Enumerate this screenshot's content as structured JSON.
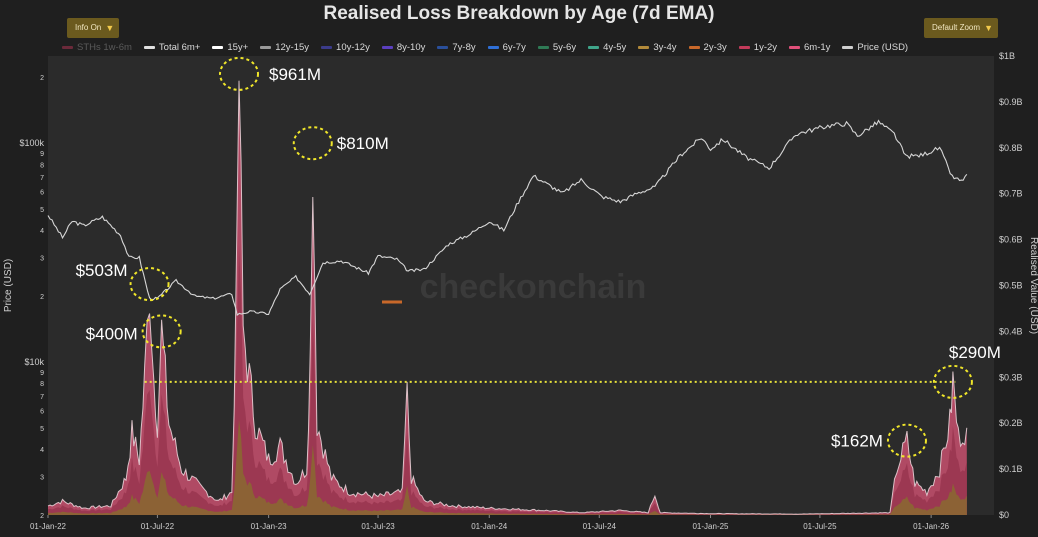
{
  "header": {
    "title": "Realised Loss Breakdown by Age (7d EMA)",
    "info_button": "Info On",
    "zoom_button": "Default Zoom",
    "caret": "▼"
  },
  "legend": [
    {
      "label": "STHs 1w-6m",
      "color": "#6b2a3a",
      "dim": true
    },
    {
      "label": "Total 6m+",
      "color": "#e0e0e0"
    },
    {
      "label": "15y+",
      "color": "#ffffff"
    },
    {
      "label": "12y-15y",
      "color": "#9a9a9a"
    },
    {
      "label": "10y-12y",
      "color": "#3b3b8a"
    },
    {
      "label": "8y-10y",
      "color": "#5b3fbf"
    },
    {
      "label": "7y-8y",
      "color": "#2a4f9a"
    },
    {
      "label": "6y-7y",
      "color": "#2f6fd6"
    },
    {
      "label": "5y-6y",
      "color": "#2f7a55"
    },
    {
      "label": "4y-5y",
      "color": "#3fa58a"
    },
    {
      "label": "3y-4y",
      "color": "#b28a3a"
    },
    {
      "label": "2y-3y",
      "color": "#c8682a"
    },
    {
      "label": "1y-2y",
      "color": "#c23a5a"
    },
    {
      "label": "6m-1y",
      "color": "#e0507a"
    },
    {
      "label": "Price (USD)",
      "color": "#cfcfcf"
    }
  ],
  "watermark": "checkonchain",
  "chart_data": {
    "type": "area",
    "x_ticks": [
      "01-Jan-22",
      "01-Jul-22",
      "01-Jan-23",
      "01-Jul-23",
      "01-Jan-24",
      "01-Jul-24",
      "01-Jan-25",
      "01-Jul-25",
      "01-Jan-26"
    ],
    "left_axis": {
      "label": "Price (USD)",
      "scale": "log",
      "range": [
        2000,
        250000
      ],
      "ticks": [
        {
          "v": 2000,
          "t": "2"
        },
        {
          "v": 3000,
          "t": "3"
        },
        {
          "v": 4000,
          "t": "4"
        },
        {
          "v": 5000,
          "t": "5"
        },
        {
          "v": 6000,
          "t": "6"
        },
        {
          "v": 7000,
          "t": "7"
        },
        {
          "v": 8000,
          "t": "8"
        },
        {
          "v": 9000,
          "t": "9"
        },
        {
          "v": 10000,
          "t": "$10k"
        },
        {
          "v": 20000,
          "t": "2"
        },
        {
          "v": 30000,
          "t": "3"
        },
        {
          "v": 40000,
          "t": "4"
        },
        {
          "v": 50000,
          "t": "5"
        },
        {
          "v": 60000,
          "t": "6"
        },
        {
          "v": 70000,
          "t": "7"
        },
        {
          "v": 80000,
          "t": "8"
        },
        {
          "v": 90000,
          "t": "9"
        },
        {
          "v": 100000,
          "t": "$100k"
        },
        {
          "v": 200000,
          "t": "2"
        }
      ]
    },
    "right_axis": {
      "label": "Realised Value (USD)",
      "range": [
        0,
        1.0
      ],
      "ticks": [
        {
          "v": 0,
          "t": "$0"
        },
        {
          "v": 0.1,
          "t": "$0.1B"
        },
        {
          "v": 0.2,
          "t": "$0.2B"
        },
        {
          "v": 0.3,
          "t": "$0.3B"
        },
        {
          "v": 0.4,
          "t": "$0.4B"
        },
        {
          "v": 0.5,
          "t": "$0.5B"
        },
        {
          "v": 0.6,
          "t": "$0.6B"
        },
        {
          "v": 0.7,
          "t": "$0.7B"
        },
        {
          "v": 0.8,
          "t": "$0.8B"
        },
        {
          "v": 0.9,
          "t": "$0.9B"
        },
        {
          "v": 1.0,
          "t": "$1B"
        }
      ]
    },
    "price_series": [
      [
        "2022-01-01",
        47000
      ],
      [
        "2022-01-25",
        37000
      ],
      [
        "2022-02-10",
        44000
      ],
      [
        "2022-03-01",
        42000
      ],
      [
        "2022-04-01",
        46000
      ],
      [
        "2022-05-01",
        38000
      ],
      [
        "2022-05-15",
        30000
      ],
      [
        "2022-06-01",
        30000
      ],
      [
        "2022-06-18",
        19500
      ],
      [
        "2022-07-01",
        19500
      ],
      [
        "2022-08-01",
        23500
      ],
      [
        "2022-09-01",
        20000
      ],
      [
        "2022-10-01",
        19500
      ],
      [
        "2022-11-01",
        20500
      ],
      [
        "2022-11-10",
        16500
      ],
      [
        "2022-12-01",
        17000
      ],
      [
        "2023-01-01",
        16600
      ],
      [
        "2023-01-20",
        21500
      ],
      [
        "2023-02-15",
        24500
      ],
      [
        "2023-03-10",
        20500
      ],
      [
        "2023-04-01",
        28500
      ],
      [
        "2023-05-01",
        29000
      ],
      [
        "2023-06-15",
        25500
      ],
      [
        "2023-07-01",
        30500
      ],
      [
        "2023-08-01",
        29500
      ],
      [
        "2023-08-20",
        26000
      ],
      [
        "2023-09-15",
        26500
      ],
      [
        "2023-10-25",
        34500
      ],
      [
        "2023-12-01",
        38500
      ],
      [
        "2024-01-01",
        44000
      ],
      [
        "2024-01-25",
        40000
      ],
      [
        "2024-02-15",
        52000
      ],
      [
        "2024-03-14",
        71000
      ],
      [
        "2024-05-01",
        59000
      ],
      [
        "2024-06-01",
        68000
      ],
      [
        "2024-07-05",
        57000
      ],
      [
        "2024-08-05",
        54000
      ],
      [
        "2024-09-01",
        59000
      ],
      [
        "2024-10-01",
        63000
      ],
      [
        "2024-11-12",
        88000
      ],
      [
        "2024-12-17",
        106000
      ],
      [
        "2025-01-01",
        94000
      ],
      [
        "2025-01-22",
        104000
      ],
      [
        "2025-03-01",
        86000
      ],
      [
        "2025-04-08",
        77000
      ],
      [
        "2025-05-22",
        110000
      ],
      [
        "2025-07-14",
        120000
      ],
      [
        "2025-08-14",
        123000
      ],
      [
        "2025-09-01",
        108000
      ],
      [
        "2025-10-06",
        125000
      ],
      [
        "2025-11-01",
        110000
      ],
      [
        "2025-11-20",
        87000
      ],
      [
        "2025-12-15",
        88000
      ],
      [
        "2026-01-15",
        95000
      ],
      [
        "2026-02-05",
        70000
      ],
      [
        "2026-02-20",
        67000
      ],
      [
        "2026-03-01",
        72000
      ]
    ],
    "loss_series": [
      [
        "2022-01-01",
        0.02
      ],
      [
        "2022-01-25",
        0.03
      ],
      [
        "2022-03-01",
        0.015
      ],
      [
        "2022-04-15",
        0.02
      ],
      [
        "2022-05-10",
        0.08
      ],
      [
        "2022-05-20",
        0.18
      ],
      [
        "2022-06-01",
        0.12
      ],
      [
        "2022-06-10",
        0.3
      ],
      [
        "2022-06-18",
        0.503
      ],
      [
        "2022-06-25",
        0.3
      ],
      [
        "2022-07-01",
        0.2
      ],
      [
        "2022-07-08",
        0.4
      ],
      [
        "2022-07-20",
        0.2
      ],
      [
        "2022-08-10",
        0.1
      ],
      [
        "2022-09-10",
        0.06
      ],
      [
        "2022-10-10",
        0.03
      ],
      [
        "2022-11-01",
        0.05
      ],
      [
        "2022-11-09",
        0.5
      ],
      [
        "2022-11-13",
        0.961
      ],
      [
        "2022-11-20",
        0.4
      ],
      [
        "2022-12-10",
        0.2
      ],
      [
        "2023-01-01",
        0.12
      ],
      [
        "2023-01-20",
        0.15
      ],
      [
        "2023-02-15",
        0.07
      ],
      [
        "2023-03-05",
        0.1
      ],
      [
        "2023-03-11",
        0.35
      ],
      [
        "2023-03-15",
        0.81
      ],
      [
        "2023-03-22",
        0.2
      ],
      [
        "2023-04-15",
        0.08
      ],
      [
        "2023-05-15",
        0.05
      ],
      [
        "2023-07-01",
        0.04
      ],
      [
        "2023-08-10",
        0.05
      ],
      [
        "2023-08-18",
        0.26
      ],
      [
        "2023-08-25",
        0.08
      ],
      [
        "2023-09-15",
        0.03
      ],
      [
        "2023-11-01",
        0.02
      ],
      [
        "2024-01-01",
        0.015
      ],
      [
        "2024-04-01",
        0.01
      ],
      [
        "2024-06-01",
        0.005
      ],
      [
        "2024-08-05",
        0.01
      ],
      [
        "2024-09-20",
        0.005
      ],
      [
        "2024-10-01",
        0.045
      ],
      [
        "2024-10-10",
        0.005
      ],
      [
        "2025-01-01",
        0.003
      ],
      [
        "2025-06-01",
        0.002
      ],
      [
        "2025-10-25",
        0.005
      ],
      [
        "2025-11-05",
        0.1
      ],
      [
        "2025-11-22",
        0.162
      ],
      [
        "2025-12-05",
        0.07
      ],
      [
        "2025-12-25",
        0.05
      ],
      [
        "2026-01-15",
        0.1
      ],
      [
        "2026-02-01",
        0.2
      ],
      [
        "2026-02-06",
        0.29
      ],
      [
        "2026-02-15",
        0.17
      ],
      [
        "2026-03-01",
        0.19
      ]
    ],
    "reference_line": 0.29,
    "annotations": [
      {
        "label": "$961M",
        "date": "2022-11-13",
        "value": 0.961
      },
      {
        "label": "$810M",
        "date": "2023-03-15",
        "value": 0.81
      },
      {
        "label": "$503M",
        "date": "2022-06-18",
        "value": 0.503
      },
      {
        "label": "$400M",
        "date": "2022-07-08",
        "value": 0.4
      },
      {
        "label": "$290M",
        "date": "2026-02-06",
        "value": 0.29
      },
      {
        "label": "$162M",
        "date": "2025-11-22",
        "value": 0.162
      }
    ],
    "grid": false,
    "legend_position": "top"
  }
}
